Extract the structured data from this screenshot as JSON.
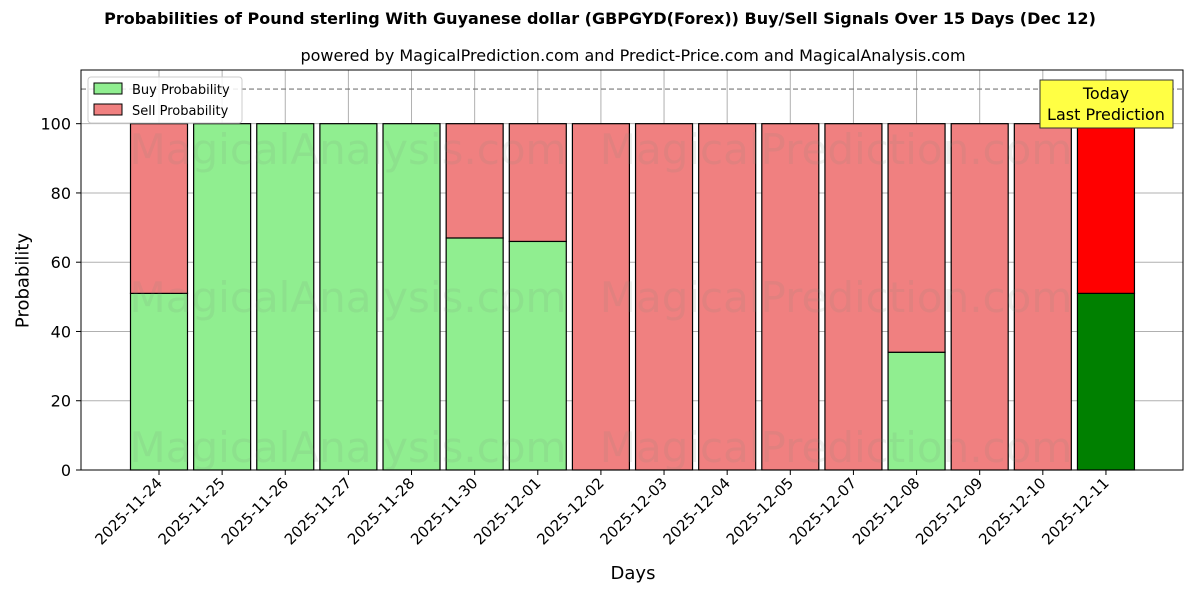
{
  "header": {
    "title": "Probabilities of Pound sterling With Guyanese dollar (GBPGYD(Forex)) Buy/Sell Signals Over 15 Days (Dec 12)",
    "subtitle": "powered by MagicalPrediction.com and Predict-Price.com and MagicalAnalysis.com"
  },
  "legend": {
    "buy_label": "Buy Probability",
    "sell_label": "Sell Probability"
  },
  "annotation": {
    "line1": "Today",
    "line2": "Last Prediction"
  },
  "watermarks": [
    "MagicalAnalysis.com",
    "MagicalPrediction.com"
  ],
  "colors": {
    "buy": "#90EE90",
    "sell": "#F08080",
    "buy_today": "#008000",
    "sell_today": "#FF0000",
    "annotation_bg": "#FFFF44",
    "grid": "#b0b0b0"
  },
  "chart_data": {
    "type": "bar",
    "stacked": true,
    "title": "Probabilities of Pound sterling With Guyanese dollar (GBPGYD(Forex)) Buy/Sell Signals Over 15 Days (Dec 12)",
    "subtitle": "powered by MagicalPrediction.com and Predict-Price.com and MagicalAnalysis.com",
    "xlabel": "Days",
    "ylabel": "Probability",
    "ylim": [
      0,
      115.5
    ],
    "yticks": [
      0,
      20,
      40,
      60,
      80,
      100
    ],
    "grid": true,
    "legend_position": "upper left",
    "reference_line": {
      "y": 110,
      "style": "dashed"
    },
    "categories": [
      "2025-11-24",
      "2025-11-25",
      "2025-11-26",
      "2025-11-27",
      "2025-11-28",
      "2025-11-30",
      "2025-12-01",
      "2025-12-02",
      "2025-12-03",
      "2025-12-04",
      "2025-12-05",
      "2025-12-07",
      "2025-12-08",
      "2025-12-09",
      "2025-12-10",
      "2025-12-11"
    ],
    "series": [
      {
        "name": "Buy Probability",
        "values": [
          51,
          100,
          100,
          100,
          100,
          67,
          66,
          0,
          0,
          0,
          0,
          0,
          34,
          0,
          0,
          51
        ]
      },
      {
        "name": "Sell Probability",
        "values": [
          49,
          0,
          0,
          0,
          0,
          33,
          34,
          100,
          100,
          100,
          100,
          100,
          66,
          100,
          100,
          49
        ]
      }
    ],
    "highlight_last": true
  }
}
